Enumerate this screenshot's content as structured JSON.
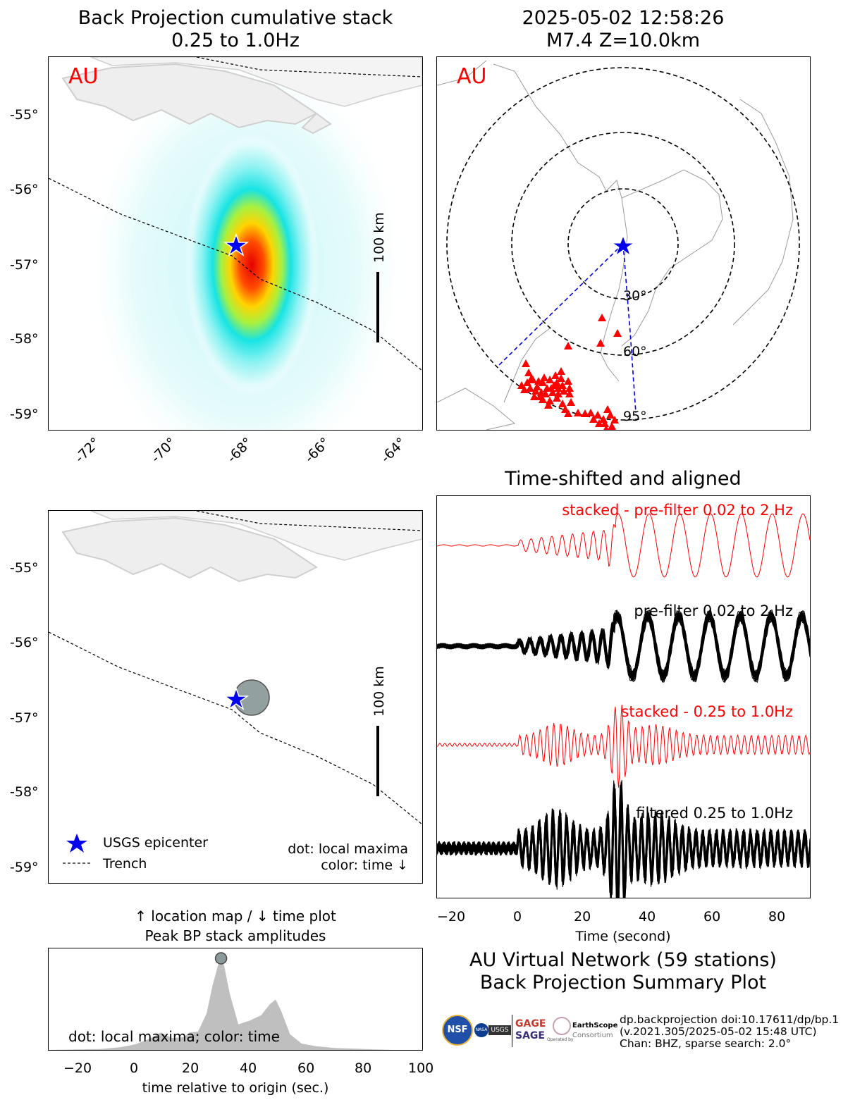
{
  "bp_map": {
    "title_line1": "Back Projection cumulative stack",
    "title_line2": "0.25 to 1.0Hz",
    "network_label": "AU",
    "lat_ticks": [
      "-55°",
      "-56°",
      "-57°",
      "-58°",
      "-59°"
    ],
    "lon_ticks": [
      "-72°",
      "-70°",
      "-68°",
      "-66°",
      "-64°"
    ],
    "scalebar_label": "100 km"
  },
  "global_map": {
    "title_line1": "2025-05-02 12:58:26",
    "title_line2": "M7.4 Z=10.0km",
    "network_label": "AU",
    "ring_labels": [
      "30°",
      "60°",
      "95°"
    ]
  },
  "waveforms": {
    "title": "Time-shifted and aligned",
    "labels": {
      "stacked_prefilter": "stacked - pre-filter 0.02 to 2 Hz",
      "prefilter": "pre-filter 0.02 to 2 Hz",
      "stacked_filtered": "stacked - 0.25 to 1.0Hz",
      "filtered": "filtered 0.25 to 1.0Hz"
    },
    "x_ticks": [
      "−20",
      "0",
      "20",
      "40",
      "60",
      "80"
    ],
    "xlabel": "Time (second)"
  },
  "maxima_map": {
    "lat_ticks": [
      "-55°",
      "-56°",
      "-57°",
      "-58°",
      "-59°"
    ],
    "scalebar_label": "100 km",
    "legend": {
      "epicenter": "USGS epicenter",
      "trench": "Trench"
    },
    "note_line1": "dot: local maxima",
    "note_line2": "color: time ↓"
  },
  "amplitude_plot": {
    "title_line1": "↑ location map / ↓ time plot",
    "title_line2": "Peak BP stack amplitudes",
    "annotation": "dot: local maxima; color: time",
    "x_ticks": [
      "−20",
      "0",
      "20",
      "40",
      "60",
      "80",
      "100"
    ],
    "xlabel": "time relative to origin (sec.)"
  },
  "summary": {
    "line1": "AU Virtual Network (59 stations)",
    "line2": "Back Projection Summary Plot"
  },
  "footer": {
    "line1": "dp.backprojection doi:10.17611/dp/bp.1",
    "line2": "(v.2021.305/2025-05-02 15:48 UTC)",
    "line3": "Chan: BHZ, sparse search: 2.0°"
  },
  "logos": {
    "nsf": "NSF",
    "nasa": "NASA",
    "usgs": "USGS",
    "gage": "GAGE",
    "sage": "SAGE",
    "earthscope": "EarthScope",
    "consortium": "Consortium",
    "operated_by": "Operated by"
  },
  "chart_data": [
    {
      "type": "heatmap",
      "name": "bp_cumulative_stack",
      "title": "Back Projection cumulative stack 0.25 to 1.0Hz",
      "lon_range": [
        -73.2,
        -63.3
      ],
      "lat_range": [
        -59.2,
        -54.25
      ],
      "peak": {
        "lon": -68.0,
        "lat": -56.8
      },
      "epicenter": {
        "lon": -68.3,
        "lat": -56.73
      }
    },
    {
      "type": "scatter",
      "name": "station_map",
      "epicenter_distance_rings_deg": [
        30,
        60,
        95
      ],
      "station_count": 59
    },
    {
      "type": "line",
      "name": "aligned_waveforms",
      "xlabel": "Time (second)",
      "xlim": [
        -25,
        90
      ],
      "series": [
        {
          "name": "stacked - pre-filter 0.02 to 2 Hz",
          "color": "#ff0000"
        },
        {
          "name": "pre-filter 0.02 to 2 Hz",
          "color": "#000000"
        },
        {
          "name": "stacked - 0.25 to 1.0Hz",
          "color": "#ff0000"
        },
        {
          "name": "filtered 0.25 to 1.0Hz",
          "color": "#000000"
        }
      ]
    },
    {
      "type": "scatter",
      "name": "local_maxima_map",
      "maxima": [
        {
          "lon": -67.85,
          "lat": -56.75,
          "time": 30
        }
      ],
      "epicenter": {
        "lon": -68.3,
        "lat": -56.73
      }
    },
    {
      "type": "area",
      "name": "peak_bp_stack_amplitudes",
      "xlabel": "time relative to origin (sec.)",
      "xlim": [
        -30,
        100
      ],
      "x": [
        -30,
        -12,
        -5,
        0,
        5,
        9,
        13,
        17,
        19,
        22,
        25,
        27,
        29,
        30,
        31,
        33,
        36,
        40,
        44,
        47,
        49,
        51,
        54,
        58,
        63,
        70,
        80,
        90,
        100
      ],
      "y": [
        0,
        0.01,
        0.03,
        0.06,
        0.12,
        0.19,
        0.13,
        0.14,
        0.19,
        0.2,
        0.4,
        0.7,
        0.93,
        1.0,
        0.93,
        0.62,
        0.28,
        0.32,
        0.38,
        0.5,
        0.55,
        0.42,
        0.17,
        0.07,
        0.04,
        0.02,
        0.01,
        0,
        0
      ],
      "maxima": [
        {
          "x": 30,
          "y": 1.0
        }
      ]
    }
  ]
}
